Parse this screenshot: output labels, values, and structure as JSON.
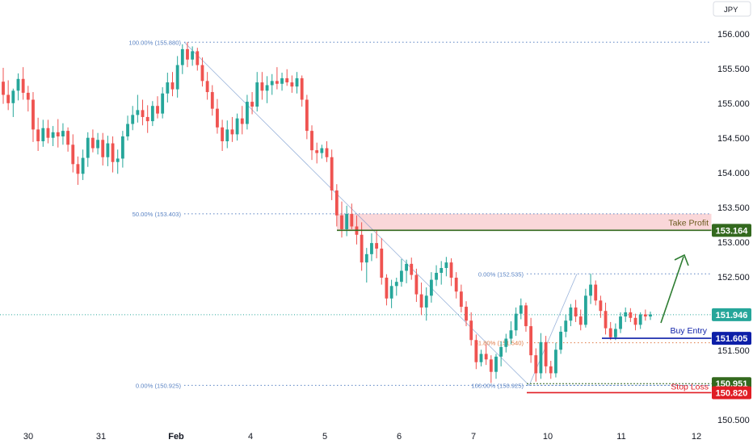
{
  "currency_label": "JPY",
  "chart_data": {
    "type": "candlestick",
    "y_axis_ticks": [
      "156.000",
      "155.500",
      "155.000",
      "154.500",
      "154.000",
      "153.500",
      "153.000",
      "152.500",
      "151.500",
      "150.500"
    ],
    "x_axis_ticks": [
      "30",
      "31",
      "Feb",
      "4",
      "5",
      "6",
      "7",
      "10",
      "11",
      "12"
    ],
    "fib_left": [
      {
        "label": "100.00% (155.880)",
        "value": 155.88
      },
      {
        "label": "50.00% (153.403)",
        "value": 153.403
      },
      {
        "label": "0.00% (150.925)",
        "value": 150.925
      }
    ],
    "fib_right": [
      {
        "label": "0.00% (152.535)",
        "value": 152.535
      },
      {
        "label": "61.80% (151.540)",
        "value": 151.54
      },
      {
        "label": "100.00% (150.925)",
        "value": 150.925
      }
    ],
    "levels": {
      "take_profit": {
        "name": "Take Profit",
        "price": "153.164",
        "value": 153.164,
        "color": "#33691e"
      },
      "current": {
        "price": "151.946",
        "value": 151.946,
        "color": "#26a69a"
      },
      "buy_entry": {
        "name": "Buy Entry",
        "price": "151.605",
        "value": 151.605,
        "color": "#0d1fa8"
      },
      "green_level": {
        "price": "150.951",
        "value": 150.951,
        "color": "#33691e"
      },
      "stop_loss": {
        "name": "Stop Loss",
        "price": "150.820",
        "value": 150.82,
        "color": "#e01d24"
      }
    },
    "zone": {
      "from": 153.164,
      "to": 153.403,
      "color": "#f8c9cc"
    },
    "colors": {
      "up": "#26a69a",
      "down": "#ef5350",
      "fib": "#5b84c4"
    },
    "candles": [
      [
        155.31,
        155.51,
        154.99,
        155.12
      ],
      [
        155.12,
        155.33,
        154.9,
        155.0
      ],
      [
        155.0,
        155.21,
        154.8,
        155.18
      ],
      [
        155.18,
        155.43,
        155.04,
        155.35
      ],
      [
        155.35,
        155.52,
        155.05,
        155.15
      ],
      [
        155.15,
        155.25,
        154.88,
        155.05
      ],
      [
        155.05,
        155.16,
        154.44,
        154.62
      ],
      [
        154.62,
        154.79,
        154.31,
        154.45
      ],
      [
        154.45,
        154.76,
        154.37,
        154.64
      ],
      [
        154.64,
        154.76,
        154.42,
        154.5
      ],
      [
        154.5,
        154.67,
        154.38,
        154.58
      ],
      [
        154.58,
        154.77,
        154.36,
        154.52
      ],
      [
        154.52,
        154.71,
        154.4,
        154.6
      ],
      [
        154.6,
        154.65,
        154.3,
        154.4
      ],
      [
        154.4,
        154.55,
        154.0,
        154.12
      ],
      [
        154.12,
        154.23,
        153.82,
        153.98
      ],
      [
        153.98,
        154.33,
        153.89,
        154.21
      ],
      [
        154.21,
        154.58,
        154.08,
        154.5
      ],
      [
        154.5,
        154.62,
        154.29,
        154.35
      ],
      [
        154.35,
        154.57,
        154.26,
        154.47
      ],
      [
        154.47,
        154.57,
        154.1,
        154.22
      ],
      [
        154.22,
        154.53,
        154.09,
        154.42
      ],
      [
        154.42,
        154.52,
        154.0,
        154.15
      ],
      [
        154.15,
        154.33,
        153.98,
        154.2
      ],
      [
        154.2,
        154.6,
        154.07,
        154.52
      ],
      [
        154.52,
        154.82,
        154.46,
        154.7
      ],
      [
        154.7,
        154.96,
        154.61,
        154.83
      ],
      [
        154.83,
        155.12,
        154.72,
        154.9
      ],
      [
        154.9,
        155.05,
        154.68,
        154.8
      ],
      [
        154.8,
        154.97,
        154.57,
        154.74
      ],
      [
        154.74,
        155.03,
        154.67,
        154.96
      ],
      [
        154.96,
        155.1,
        154.78,
        154.85
      ],
      [
        154.85,
        155.23,
        154.78,
        155.14
      ],
      [
        155.14,
        155.44,
        155.01,
        155.3
      ],
      [
        155.3,
        155.45,
        155.1,
        155.2
      ],
      [
        155.2,
        155.68,
        155.08,
        155.55
      ],
      [
        155.55,
        155.85,
        155.42,
        155.78
      ],
      [
        155.78,
        155.88,
        155.52,
        155.63
      ],
      [
        155.63,
        155.82,
        155.54,
        155.75
      ],
      [
        155.75,
        155.8,
        155.47,
        155.55
      ],
      [
        155.55,
        155.66,
        155.24,
        155.32
      ],
      [
        155.32,
        155.45,
        155.05,
        155.16
      ],
      [
        155.16,
        155.26,
        154.82,
        154.92
      ],
      [
        154.92,
        155.06,
        154.56,
        154.65
      ],
      [
        154.65,
        154.76,
        154.31,
        154.45
      ],
      [
        154.45,
        154.75,
        154.35,
        154.62
      ],
      [
        154.62,
        154.8,
        154.44,
        154.55
      ],
      [
        154.55,
        154.85,
        154.46,
        154.78
      ],
      [
        154.78,
        154.96,
        154.55,
        154.7
      ],
      [
        154.7,
        155.12,
        154.62,
        155.02
      ],
      [
        155.02,
        155.16,
        154.84,
        154.95
      ],
      [
        154.95,
        155.45,
        154.88,
        155.3
      ],
      [
        155.3,
        155.45,
        155.05,
        155.18
      ],
      [
        155.18,
        155.39,
        155.0,
        155.26
      ],
      [
        155.26,
        155.42,
        155.12,
        155.32
      ],
      [
        155.32,
        155.52,
        155.2,
        155.28
      ],
      [
        155.28,
        155.44,
        155.18,
        155.36
      ],
      [
        155.36,
        155.49,
        155.25,
        155.3
      ],
      [
        155.3,
        155.4,
        155.15,
        155.24
      ],
      [
        155.24,
        155.45,
        155.14,
        155.36
      ],
      [
        155.36,
        155.4,
        154.95,
        155.05
      ],
      [
        155.05,
        155.12,
        154.48,
        154.6
      ],
      [
        154.6,
        154.68,
        154.18,
        154.32
      ],
      [
        154.32,
        154.43,
        154.13,
        154.28
      ],
      [
        154.28,
        154.4,
        154.2,
        154.35
      ],
      [
        154.35,
        154.45,
        154.15,
        154.22
      ],
      [
        154.22,
        154.33,
        153.6,
        153.74
      ],
      [
        153.74,
        153.83,
        153.22,
        153.38
      ],
      [
        153.38,
        153.58,
        153.06,
        153.18
      ],
      [
        153.18,
        153.52,
        153.08,
        153.4
      ],
      [
        153.4,
        153.55,
        153.18,
        153.22
      ],
      [
        153.22,
        153.38,
        152.96,
        153.1
      ],
      [
        153.1,
        153.28,
        152.58,
        152.7
      ],
      [
        152.7,
        152.91,
        152.41,
        152.82
      ],
      [
        152.82,
        153.12,
        152.72,
        152.98
      ],
      [
        152.98,
        153.16,
        152.76,
        152.9
      ],
      [
        152.9,
        153.05,
        152.38,
        152.48
      ],
      [
        152.48,
        152.53,
        152.08,
        152.18
      ],
      [
        152.18,
        152.45,
        152.04,
        152.36
      ],
      [
        152.36,
        152.48,
        152.22,
        152.42
      ],
      [
        152.42,
        152.75,
        152.35,
        152.58
      ],
      [
        152.58,
        152.74,
        152.4,
        152.68
      ],
      [
        152.68,
        152.77,
        152.45,
        152.52
      ],
      [
        152.52,
        152.61,
        152.13,
        152.24
      ],
      [
        152.24,
        152.41,
        151.94,
        152.05
      ],
      [
        152.05,
        152.34,
        151.86,
        152.22
      ],
      [
        152.22,
        152.56,
        152.12,
        152.45
      ],
      [
        152.45,
        152.66,
        152.36,
        152.55
      ],
      [
        152.55,
        152.72,
        152.38,
        152.62
      ],
      [
        152.62,
        152.78,
        152.5,
        152.7
      ],
      [
        152.7,
        152.76,
        152.36,
        152.48
      ],
      [
        152.48,
        152.56,
        152.18,
        152.28
      ],
      [
        152.28,
        152.38,
        151.98,
        152.06
      ],
      [
        152.06,
        152.14,
        151.78,
        151.86
      ],
      [
        151.86,
        151.98,
        151.5,
        151.58
      ],
      [
        151.58,
        151.66,
        151.16,
        151.26
      ],
      [
        151.26,
        151.44,
        151.2,
        151.38
      ],
      [
        151.38,
        151.52,
        151.22,
        151.3
      ],
      [
        151.3,
        151.36,
        150.96,
        151.12
      ],
      [
        151.12,
        151.38,
        151.02,
        151.34
      ],
      [
        151.34,
        151.56,
        151.2,
        151.48
      ],
      [
        151.48,
        151.67,
        151.4,
        151.6
      ],
      [
        151.6,
        151.85,
        151.52,
        151.72
      ],
      [
        151.72,
        152.05,
        151.64,
        151.96
      ],
      [
        151.96,
        152.18,
        151.88,
        152.08
      ],
      [
        152.08,
        152.12,
        151.7,
        151.78
      ],
      [
        151.78,
        151.9,
        151.25,
        151.36
      ],
      [
        151.36,
        151.46,
        150.98,
        151.1
      ],
      [
        151.1,
        151.68,
        151.02,
        151.55
      ],
      [
        151.55,
        151.64,
        151.1,
        151.2
      ],
      [
        151.2,
        151.28,
        151.02,
        151.1
      ],
      [
        151.1,
        151.54,
        151.04,
        151.44
      ],
      [
        151.44,
        151.78,
        151.38,
        151.7
      ],
      [
        151.7,
        151.95,
        151.62,
        151.86
      ],
      [
        151.86,
        152.1,
        151.78,
        152.05
      ],
      [
        152.05,
        152.16,
        151.84,
        151.92
      ],
      [
        151.92,
        152.02,
        151.72,
        151.8
      ],
      [
        151.8,
        152.32,
        151.76,
        152.22
      ],
      [
        152.22,
        152.54,
        152.1,
        152.38
      ],
      [
        152.38,
        152.44,
        152.08,
        152.15
      ],
      [
        152.15,
        152.22,
        151.9,
        152.0
      ],
      [
        152.0,
        152.12,
        151.66,
        151.75
      ],
      [
        151.75,
        151.84,
        151.58,
        151.62
      ],
      [
        151.62,
        151.82,
        151.58,
        151.74
      ],
      [
        151.74,
        151.98,
        151.68,
        151.92
      ],
      [
        151.92,
        152.05,
        151.84,
        151.98
      ],
      [
        151.98,
        152.04,
        151.84,
        151.9
      ],
      [
        151.9,
        151.96,
        151.72,
        151.8
      ],
      [
        151.8,
        151.98,
        151.74,
        151.95
      ],
      [
        151.95,
        152.02,
        151.86,
        151.92
      ],
      [
        151.92,
        151.99,
        151.87,
        151.95
      ]
    ]
  }
}
